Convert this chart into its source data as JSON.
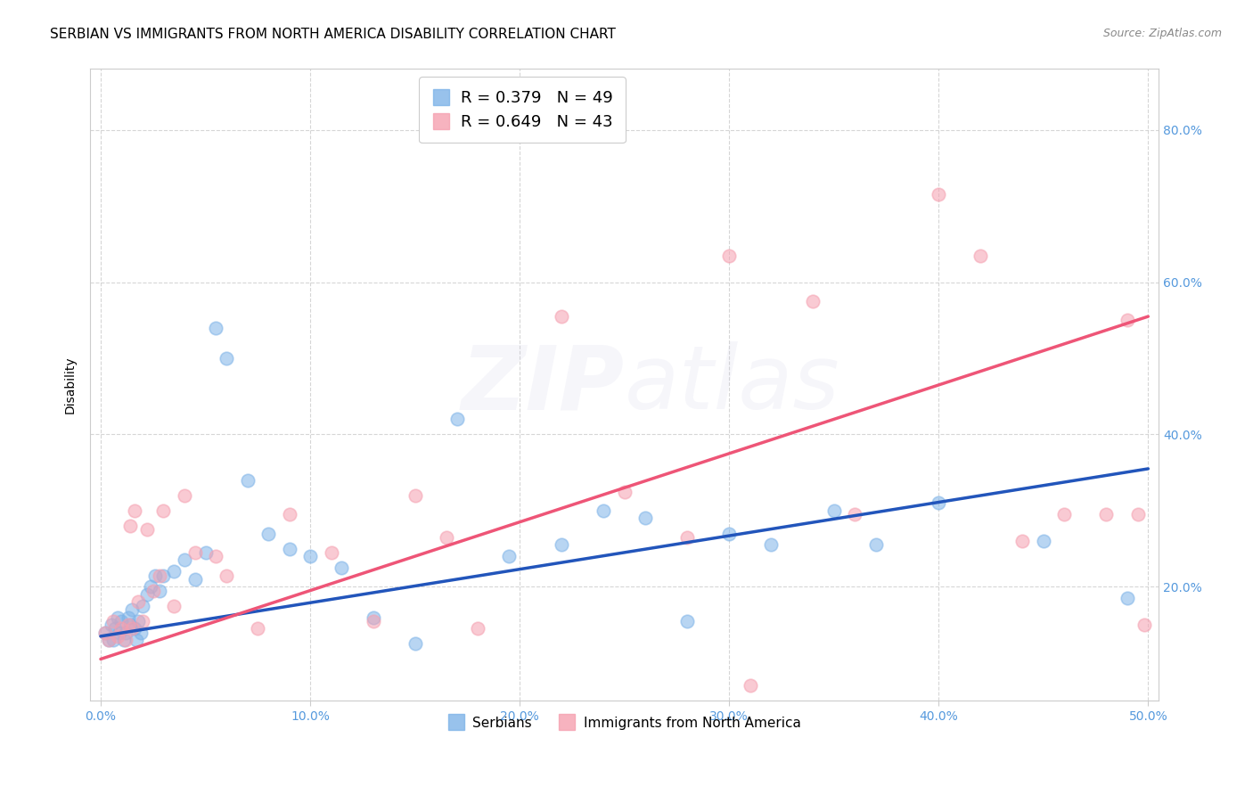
{
  "title": "SERBIAN VS IMMIGRANTS FROM NORTH AMERICA DISABILITY CORRELATION CHART",
  "source": "Source: ZipAtlas.com",
  "ylabel": "Disability",
  "xlim": [
    -0.005,
    0.505
  ],
  "ylim": [
    0.05,
    0.88
  ],
  "xticks": [
    0.0,
    0.1,
    0.2,
    0.3,
    0.4,
    0.5
  ],
  "xticklabels": [
    "0.0%",
    "10.0%",
    "20.0%",
    "30.0%",
    "40.0%",
    "50.0%"
  ],
  "yticks": [
    0.2,
    0.4,
    0.6,
    0.8
  ],
  "yticklabels": [
    "20.0%",
    "40.0%",
    "60.0%",
    "80.0%"
  ],
  "blue_color": "#7EB3E8",
  "pink_color": "#F5A0B0",
  "blue_line_color": "#2255BB",
  "pink_line_color": "#EE5577",
  "legend_blue_R": "R = 0.379",
  "legend_blue_N": "N = 49",
  "legend_pink_R": "R = 0.649",
  "legend_pink_N": "N = 43",
  "legend_label_blue": "Serbians",
  "legend_label_pink": "Immigrants from North America",
  "blue_scatter_x": [
    0.002,
    0.004,
    0.005,
    0.006,
    0.007,
    0.008,
    0.009,
    0.01,
    0.011,
    0.012,
    0.013,
    0.014,
    0.015,
    0.016,
    0.017,
    0.018,
    0.019,
    0.02,
    0.022,
    0.024,
    0.026,
    0.028,
    0.03,
    0.035,
    0.04,
    0.045,
    0.05,
    0.055,
    0.06,
    0.07,
    0.08,
    0.09,
    0.1,
    0.115,
    0.13,
    0.15,
    0.17,
    0.195,
    0.22,
    0.24,
    0.26,
    0.28,
    0.3,
    0.32,
    0.35,
    0.37,
    0.4,
    0.45,
    0.49
  ],
  "blue_scatter_y": [
    0.14,
    0.13,
    0.15,
    0.13,
    0.145,
    0.16,
    0.14,
    0.155,
    0.13,
    0.14,
    0.16,
    0.15,
    0.17,
    0.145,
    0.13,
    0.155,
    0.14,
    0.175,
    0.19,
    0.2,
    0.215,
    0.195,
    0.215,
    0.22,
    0.235,
    0.21,
    0.245,
    0.54,
    0.5,
    0.34,
    0.27,
    0.25,
    0.24,
    0.225,
    0.16,
    0.125,
    0.42,
    0.24,
    0.255,
    0.3,
    0.29,
    0.155,
    0.27,
    0.255,
    0.3,
    0.255,
    0.31,
    0.26,
    0.185
  ],
  "pink_scatter_x": [
    0.002,
    0.004,
    0.006,
    0.008,
    0.01,
    0.012,
    0.013,
    0.014,
    0.015,
    0.016,
    0.018,
    0.02,
    0.022,
    0.025,
    0.028,
    0.03,
    0.035,
    0.04,
    0.045,
    0.055,
    0.06,
    0.075,
    0.09,
    0.11,
    0.13,
    0.15,
    0.165,
    0.18,
    0.22,
    0.25,
    0.28,
    0.3,
    0.31,
    0.34,
    0.36,
    0.4,
    0.42,
    0.44,
    0.46,
    0.48,
    0.49,
    0.495,
    0.498
  ],
  "pink_scatter_y": [
    0.14,
    0.13,
    0.155,
    0.135,
    0.145,
    0.13,
    0.15,
    0.28,
    0.145,
    0.3,
    0.18,
    0.155,
    0.275,
    0.195,
    0.215,
    0.3,
    0.175,
    0.32,
    0.245,
    0.24,
    0.215,
    0.145,
    0.295,
    0.245,
    0.155,
    0.32,
    0.265,
    0.145,
    0.555,
    0.325,
    0.265,
    0.635,
    0.07,
    0.575,
    0.295,
    0.715,
    0.635,
    0.26,
    0.295,
    0.295,
    0.55,
    0.295,
    0.15
  ],
  "blue_trend": [
    0.135,
    0.355
  ],
  "pink_trend": [
    0.105,
    0.555
  ],
  "background_color": "#FFFFFF",
  "grid_color": "#CCCCCC",
  "title_fontsize": 11,
  "axis_label_fontsize": 10,
  "tick_fontsize": 10,
  "watermark_alpha": 0.13,
  "watermark_fontsize": 72
}
